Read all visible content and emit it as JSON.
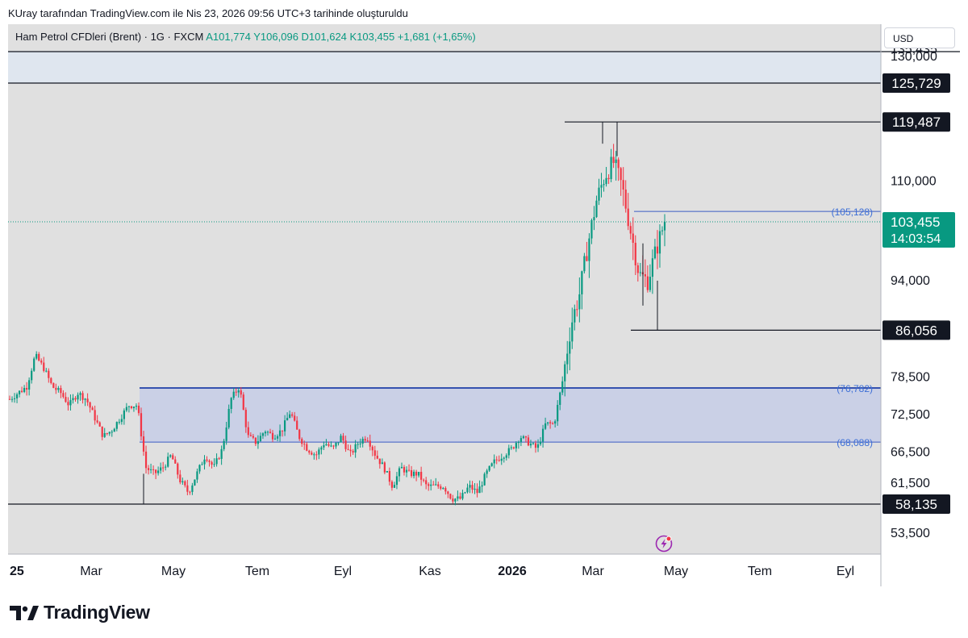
{
  "caption": "KUray tarafından TradingView.com ile Nis 23, 2026 09:56 UTC+3 tarihinde oluşturuldu",
  "legend": {
    "symbol": "Ham Petrol CFDleri (Brent) · 1G · FXCM",
    "ohlc": "A101,774  Y106,096  D101,624  K103,455  +1,681 (+1,65%)"
  },
  "currency_button": "USD",
  "brand": "TradingView",
  "colors": {
    "up": "#089981",
    "down": "#f23645",
    "zone": "#c5cde6",
    "zone_line": "#1e3fa8",
    "level_line": "#3d5cc4",
    "price_tag": "#089981",
    "level_tag": "#131722"
  },
  "chart_data": {
    "type": "candlestick",
    "y_ticks": [
      "130,000",
      "110,000",
      "94,000",
      "78,500",
      "72,500",
      "66,500",
      "61,500",
      "53,500"
    ],
    "x_ticks": [
      "25",
      "Mar",
      "May",
      "Tem",
      "Eyl",
      "Kas",
      "2026",
      "Mar",
      "May",
      "Tem",
      "Eyl"
    ],
    "horizontal_levels": [
      "125,729",
      "119,487",
      "86,056",
      "58,135"
    ],
    "zone_labels": {
      "top": "(76,782)",
      "bottom": "(68,088)"
    },
    "resistance_label": "(105,128)",
    "last_price": "103,455",
    "countdown": "14:03:54",
    "top_clipped_label": "135,435",
    "path": [
      [
        0,
        75
      ],
      [
        1,
        76
      ],
      [
        2,
        77
      ],
      [
        3,
        82
      ],
      [
        4,
        80
      ],
      [
        5,
        77
      ],
      [
        6,
        76
      ],
      [
        7,
        74
      ],
      [
        8,
        76
      ],
      [
        9,
        75
      ],
      [
        10,
        72
      ],
      [
        11,
        69
      ],
      [
        12,
        70
      ],
      [
        13,
        72
      ],
      [
        14,
        74
      ],
      [
        15,
        74
      ],
      [
        16,
        64
      ],
      [
        17,
        63
      ],
      [
        18,
        64
      ],
      [
        19,
        66
      ],
      [
        20,
        62
      ],
      [
        21,
        60
      ],
      [
        22,
        63
      ],
      [
        23,
        66
      ],
      [
        24,
        64
      ],
      [
        25,
        67
      ],
      [
        26,
        75
      ],
      [
        27,
        77
      ],
      [
        28,
        69
      ],
      [
        29,
        68
      ],
      [
        30,
        70
      ],
      [
        31,
        69
      ],
      [
        32,
        70
      ],
      [
        33,
        73
      ],
      [
        34,
        69
      ],
      [
        35,
        67
      ],
      [
        36,
        66
      ],
      [
        37,
        68
      ],
      [
        38,
        67
      ],
      [
        39,
        69
      ],
      [
        40,
        66
      ],
      [
        41,
        68
      ],
      [
        42,
        69
      ],
      [
        43,
        66
      ],
      [
        44,
        64
      ],
      [
        45,
        61
      ],
      [
        46,
        64
      ],
      [
        47,
        63
      ],
      [
        48,
        63
      ],
      [
        49,
        61
      ],
      [
        50,
        61
      ],
      [
        51,
        61
      ],
      [
        52,
        59
      ],
      [
        53,
        59
      ],
      [
        54,
        61
      ],
      [
        55,
        60
      ],
      [
        56,
        63
      ],
      [
        57,
        65
      ],
      [
        58,
        66
      ],
      [
        59,
        67
      ],
      [
        60,
        69
      ],
      [
        61,
        68
      ],
      [
        62,
        67
      ],
      [
        63,
        71
      ],
      [
        64,
        71
      ],
      [
        65,
        78
      ],
      [
        66,
        87
      ],
      [
        67,
        92
      ],
      [
        68,
        100
      ],
      [
        69,
        107
      ],
      [
        70,
        111
      ],
      [
        71,
        113
      ],
      [
        72,
        109
      ],
      [
        73,
        102
      ],
      [
        74,
        95
      ],
      [
        75,
        94
      ],
      [
        76,
        99
      ],
      [
        77,
        103.5
      ]
    ]
  }
}
